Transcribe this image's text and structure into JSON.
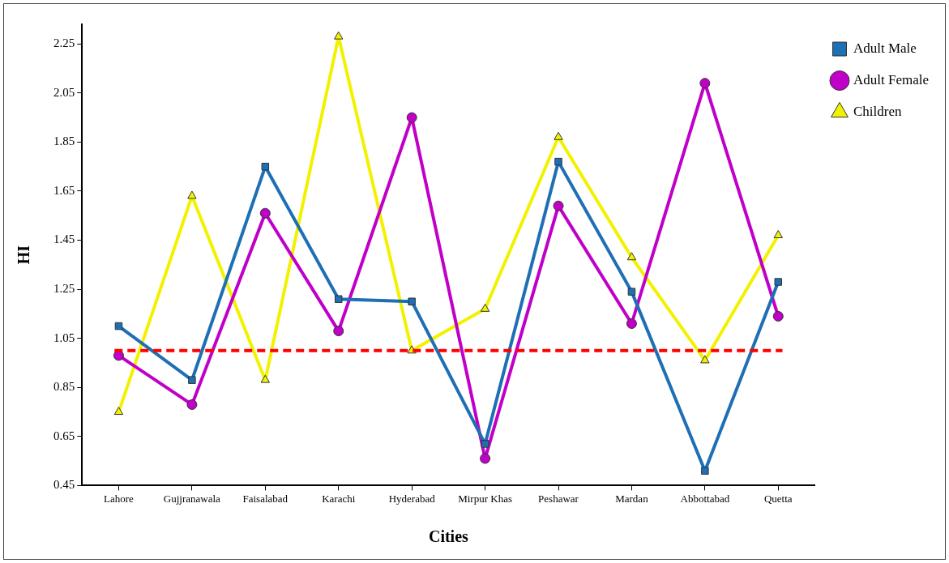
{
  "chart_data": {
    "type": "line",
    "xlabel": "Cities",
    "ylabel": "HI",
    "categories": [
      "Lahore",
      "Gujjranawala",
      "Faisalabad",
      "Karachi",
      "Hyderabad",
      "Mirpur Khas",
      "Peshawar",
      "Mardan",
      "Abbottabad",
      "Quetta"
    ],
    "series": [
      {
        "name": "Adult Male",
        "color": "#1f6fb5",
        "marker": "square",
        "values": [
          1.1,
          0.88,
          1.75,
          1.21,
          1.2,
          0.62,
          1.77,
          1.24,
          0.51,
          1.28
        ]
      },
      {
        "name": "Adult Female",
        "color": "#c000c8",
        "marker": "circle",
        "values": [
          0.98,
          0.78,
          1.56,
          1.08,
          1.95,
          0.56,
          1.59,
          1.11,
          2.09,
          1.14
        ]
      },
      {
        "name": "Children",
        "color": "#f2f200",
        "marker": "triangle",
        "values": [
          0.75,
          1.63,
          0.88,
          2.28,
          1.0,
          1.17,
          1.87,
          1.38,
          0.96,
          1.47
        ]
      }
    ],
    "ylim": [
      0.45,
      2.33
    ],
    "yticks": [
      0.45,
      0.65,
      0.85,
      1.05,
      1.25,
      1.45,
      1.65,
      1.85,
      2.05,
      2.25
    ],
    "ref_lines": [
      {
        "axis": "y",
        "value": 1.0,
        "color": "#ff0000",
        "line_style": "dashed"
      }
    ],
    "grid": false,
    "legend": "top right",
    "line_style": "solid"
  }
}
